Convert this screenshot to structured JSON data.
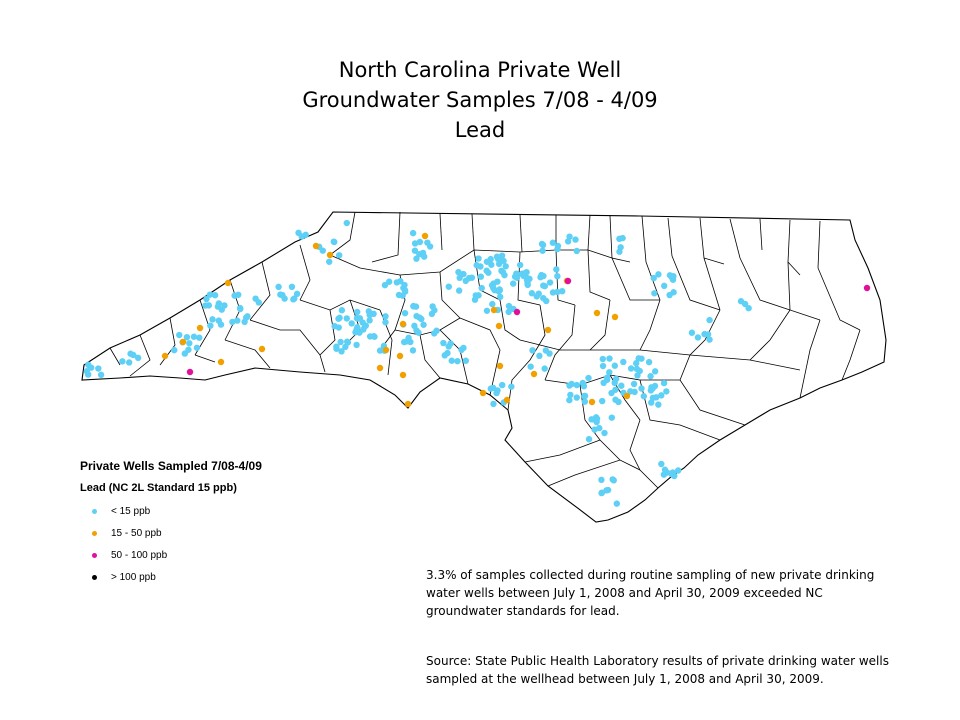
{
  "title": {
    "line1": "North Carolina Private Well",
    "line2": "Groundwater Samples 7/08 - 4/09",
    "line3": "Lead"
  },
  "legend": {
    "title": "Private Wells Sampled 7/08-4/09",
    "subtitle": "Lead (NC 2L Standard 15 ppb)",
    "items": [
      {
        "label": "< 15 ppb",
        "color": "#5ed0f5"
      },
      {
        "label": "15 - 50 ppb",
        "color": "#f2a000"
      },
      {
        "label": "50 - 100 ppb",
        "color": "#e0109a"
      },
      {
        "label": "> 100 ppb",
        "color": "#000000"
      }
    ]
  },
  "notes": {
    "summary": "3.3% of samples collected during routine sampling of new private drinking water wells between July 1, 2008 and April 30, 2009 exceeded NC groundwater standards for lead.",
    "source": "Source: State Public Health Laboratory results of private drinking water wells sampled at the wellhead between July 1, 2008 and April 30, 2009."
  }
}
